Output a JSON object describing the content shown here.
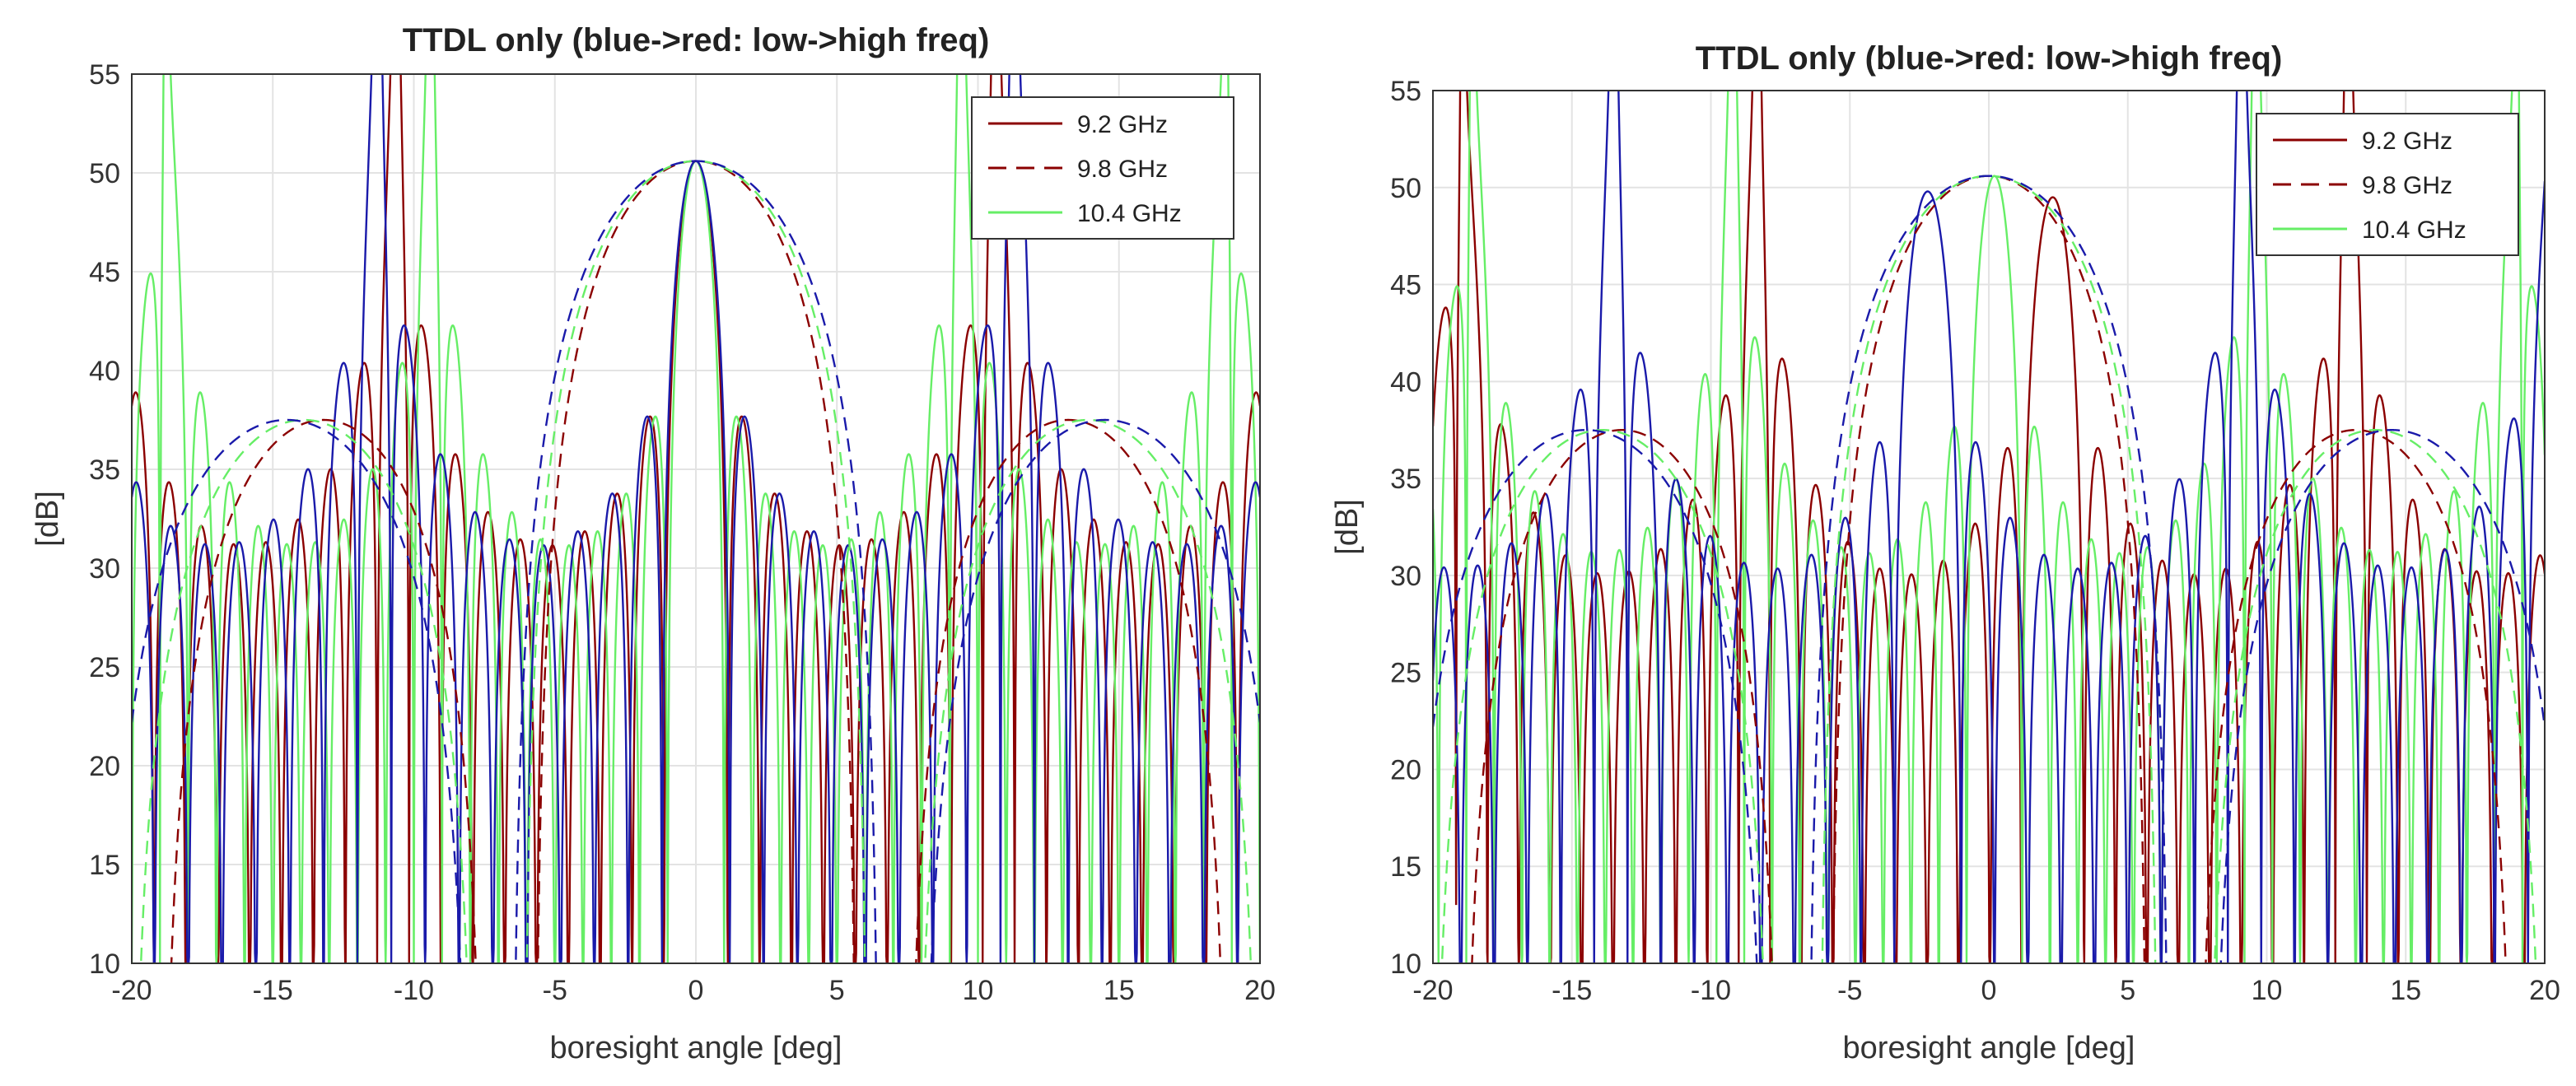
{
  "figure_description": "",
  "chart_data": [
    {
      "type": "line",
      "title": "TTDL only (blue->red: low->high freq)",
      "xlabel": "boresight angle [deg]",
      "ylabel": "[dB]",
      "xlim": [
        -20,
        20
      ],
      "ylim": [
        10,
        55
      ],
      "xticks": [
        -20,
        -15,
        -10,
        -5,
        0,
        5,
        10,
        15,
        20
      ],
      "yticks": [
        10,
        15,
        20,
        25,
        30,
        35,
        40,
        45,
        50,
        55
      ],
      "grid": true,
      "legend_position": "top-right",
      "legend": [
        {
          "label": "9.2 GHz",
          "color": "#8b0000",
          "style": "solid"
        },
        {
          "label": "9.8 GHz",
          "color": "#8b0000",
          "style": "dashed"
        },
        {
          "label": "10.4 GHz",
          "color": "#66ee66",
          "style": "solid"
        }
      ],
      "series": [
        {
          "name": "9.2 GHz array pattern",
          "color": "#8b0000",
          "style": "solid",
          "kind": "array",
          "center": 0,
          "peak": 50.6,
          "null_spacing": 1.13,
          "floor": 10
        },
        {
          "name": "10.4 GHz array pattern",
          "color": "#66ee66",
          "style": "solid",
          "kind": "array",
          "center": 0,
          "peak": 50.6,
          "null_spacing": 1.0,
          "floor": 10
        },
        {
          "name": "low-freq array pattern",
          "color": "#1a1aaa",
          "style": "solid",
          "kind": "array",
          "center": 0,
          "peak": 50.6,
          "null_spacing": 1.2,
          "floor": 10
        },
        {
          "name": "9.2 GHz subarray envelope",
          "color": "#8b0000",
          "style": "dashed",
          "kind": "envelope",
          "centers": [
            -13.2,
            0,
            13.2
          ],
          "peaks": [
            37.5,
            50.6,
            37.5
          ],
          "halfwidth": 5.7
        },
        {
          "name": "9.8 GHz subarray envelope",
          "color": "#66ee66",
          "style": "dashed",
          "kind": "envelope",
          "centers": [
            -13.9,
            0,
            13.9
          ],
          "peaks": [
            37.5,
            50.6,
            37.5
          ],
          "halfwidth": 6.1
        },
        {
          "name": "10.4 GHz subarray envelope",
          "color": "#1a1aaa",
          "style": "dashed",
          "kind": "envelope",
          "centers": [
            -14.5,
            0,
            14.5
          ],
          "peaks": [
            37.5,
            50.6,
            37.5
          ],
          "halfwidth": 6.5
        }
      ]
    },
    {
      "type": "line",
      "title": "TTDL only (blue->red: low->high freq)",
      "xlabel": "boresight angle [deg]",
      "ylabel": "[dB]",
      "xlim": [
        -20,
        20
      ],
      "ylim": [
        10,
        55
      ],
      "xticks": [
        -20,
        -15,
        -10,
        -5,
        0,
        5,
        10,
        15,
        20
      ],
      "yticks": [
        10,
        15,
        20,
        25,
        30,
        35,
        40,
        45,
        50,
        55
      ],
      "grid": true,
      "legend_position": "top-right",
      "legend": [
        {
          "label": "9.2 GHz",
          "color": "#8b0000",
          "style": "solid"
        },
        {
          "label": "9.8 GHz",
          "color": "#8b0000",
          "style": "dashed"
        },
        {
          "label": "10.4 GHz",
          "color": "#66ee66",
          "style": "solid"
        }
      ],
      "series": [
        {
          "name": "9.2 GHz array pattern",
          "color": "#8b0000",
          "style": "solid",
          "kind": "array",
          "center": 2.3,
          "peak": 49.5,
          "null_spacing": 1.13,
          "floor": 10
        },
        {
          "name": "10.4 GHz array pattern",
          "color": "#66ee66",
          "style": "solid",
          "kind": "array",
          "center": 0.2,
          "peak": 50.6,
          "null_spacing": 1.0,
          "floor": 10
        },
        {
          "name": "low-freq array pattern",
          "color": "#1a1aaa",
          "style": "solid",
          "kind": "array",
          "center": -2.2,
          "peak": 49.8,
          "null_spacing": 1.2,
          "floor": 10
        },
        {
          "name": "9.2 GHz subarray envelope",
          "color": "#8b0000",
          "style": "dashed",
          "kind": "envelope",
          "centers": [
            -13.2,
            0,
            13.2
          ],
          "peaks": [
            37.5,
            50.6,
            37.5
          ],
          "halfwidth": 5.7
        },
        {
          "name": "9.8 GHz subarray envelope",
          "color": "#66ee66",
          "style": "dashed",
          "kind": "envelope",
          "centers": [
            -13.9,
            0,
            13.9
          ],
          "peaks": [
            37.5,
            50.6,
            37.5
          ],
          "halfwidth": 6.1
        },
        {
          "name": "10.4 GHz subarray envelope",
          "color": "#1a1aaa",
          "style": "dashed",
          "kind": "envelope",
          "centers": [
            -14.5,
            0,
            14.5
          ],
          "peaks": [
            37.5,
            50.6,
            37.5
          ],
          "halfwidth": 6.5
        }
      ]
    }
  ]
}
